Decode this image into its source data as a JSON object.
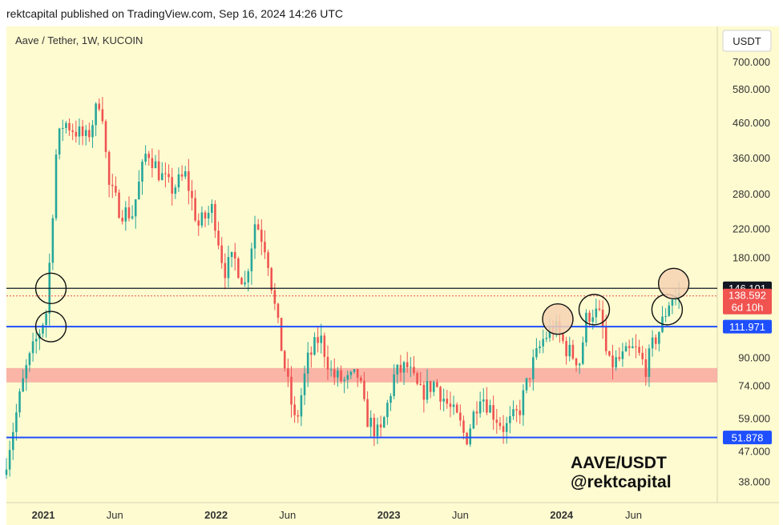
{
  "header": {
    "text": "rektcapital published on TradingView.com, Sep 16, 2024 14:26 UTC"
  },
  "chart_data": {
    "type": "candlestick",
    "symbol": "Aave / Tether, 1W, KUCOIN",
    "currency": "USDT",
    "y_scale": "log",
    "ylim": [
      33,
      900
    ],
    "y_ticks": [
      {
        "value": 700,
        "label": "700.000"
      },
      {
        "value": 580,
        "label": "580.000"
      },
      {
        "value": 460,
        "label": "460.000"
      },
      {
        "value": 360,
        "label": "360.000"
      },
      {
        "value": 280,
        "label": "280.000"
      },
      {
        "value": 220,
        "label": "220.000"
      },
      {
        "value": 180,
        "label": "180.000"
      },
      {
        "value": 90,
        "label": "90.000"
      },
      {
        "value": 74,
        "label": "74.000"
      },
      {
        "value": 59,
        "label": "59.000"
      },
      {
        "value": 47,
        "label": "47.000"
      },
      {
        "value": 38,
        "label": "38.000"
      }
    ],
    "x_ticks": [
      {
        "t": "2021-01-01",
        "label": "2021",
        "year": true
      },
      {
        "t": "2021-06-01",
        "label": "Jun",
        "year": false
      },
      {
        "t": "2022-01-01",
        "label": "2022",
        "year": true
      },
      {
        "t": "2022-06-01",
        "label": "Jun",
        "year": false
      },
      {
        "t": "2023-01-01",
        "label": "2023",
        "year": true
      },
      {
        "t": "2023-06-01",
        "label": "Jun",
        "year": false
      },
      {
        "t": "2024-01-01",
        "label": "2024",
        "year": true
      },
      {
        "t": "2024-06-01",
        "label": "Jun",
        "year": false
      }
    ],
    "price_levels": [
      {
        "name": "resistance",
        "value": 146.101,
        "label": "146.101",
        "color": "#131722"
      },
      {
        "name": "support-upper",
        "value": 111.971,
        "label": "111.971",
        "color": "#1e4fff"
      },
      {
        "name": "support-lower",
        "value": 51.878,
        "label": "51.878",
        "color": "#1e4fff"
      }
    ],
    "current_price": {
      "value": 138.592,
      "label": "138.592",
      "countdown": "6d 10h",
      "color": "#f05350"
    },
    "zone": {
      "low": 76,
      "high": 84,
      "color": "#f9a8a0"
    },
    "circles": [
      {
        "date": "2021-01-17",
        "value": 146,
        "fill": "none"
      },
      {
        "date": "2021-01-17",
        "value": 112,
        "fill": "none"
      },
      {
        "date": "2023-12-24",
        "value": 118,
        "fill": "#f6d2b4"
      },
      {
        "date": "2024-03-10",
        "value": 126,
        "fill": "none"
      },
      {
        "date": "2024-08-11",
        "value": 126,
        "fill": "none"
      },
      {
        "date": "2024-08-25",
        "value": 151,
        "fill": "#f6d2b4"
      }
    ],
    "anchors": [
      [
        "2020-10-15",
        40
      ],
      [
        "2020-12-01",
        82
      ],
      [
        "2021-01-15",
        125
      ],
      [
        "2021-02-05",
        390
      ],
      [
        "2021-02-20",
        465
      ],
      [
        "2021-04-10",
        410
      ],
      [
        "2021-05-10",
        560
      ],
      [
        "2021-05-25",
        300
      ],
      [
        "2021-06-20",
        250
      ],
      [
        "2021-07-15",
        245
      ],
      [
        "2021-08-15",
        385
      ],
      [
        "2021-09-10",
        325
      ],
      [
        "2021-10-05",
        290
      ],
      [
        "2021-11-05",
        320
      ],
      [
        "2021-12-01",
        225
      ],
      [
        "2022-01-01",
        255
      ],
      [
        "2022-01-25",
        165
      ],
      [
        "2022-02-15",
        180
      ],
      [
        "2022-03-10",
        150
      ],
      [
        "2022-04-01",
        235
      ],
      [
        "2022-04-25",
        190
      ],
      [
        "2022-05-15",
        120
      ],
      [
        "2022-06-05",
        80
      ],
      [
        "2022-06-25",
        56
      ],
      [
        "2022-07-20",
        88
      ],
      [
        "2022-08-15",
        105
      ],
      [
        "2022-09-10",
        80
      ],
      [
        "2022-10-10",
        76
      ],
      [
        "2022-11-05",
        80
      ],
      [
        "2022-11-20",
        60
      ],
      [
        "2022-12-20",
        52
      ],
      [
        "2023-01-20",
        80
      ],
      [
        "2023-02-15",
        85
      ],
      [
        "2023-03-15",
        70
      ],
      [
        "2023-04-15",
        76
      ],
      [
        "2023-05-15",
        64
      ],
      [
        "2023-06-05",
        58
      ],
      [
        "2023-06-20",
        51
      ],
      [
        "2023-07-20",
        71
      ],
      [
        "2023-08-15",
        62
      ],
      [
        "2023-09-10",
        55
      ],
      [
        "2023-10-10",
        62
      ],
      [
        "2023-11-05",
        84
      ],
      [
        "2023-12-01",
        103
      ],
      [
        "2023-12-24",
        112
      ],
      [
        "2024-01-20",
        95
      ],
      [
        "2024-02-15",
        88
      ],
      [
        "2024-03-01",
        120
      ],
      [
        "2024-03-15",
        125
      ],
      [
        "2024-04-01",
        118
      ],
      [
        "2024-04-15",
        85
      ],
      [
        "2024-05-15",
        90
      ],
      [
        "2024-06-10",
        96
      ],
      [
        "2024-07-05",
        84
      ],
      [
        "2024-07-20",
        100
      ],
      [
        "2024-08-05",
        112
      ],
      [
        "2024-08-25",
        137
      ],
      [
        "2024-09-10",
        139
      ]
    ]
  },
  "annotation": {
    "line1": "AAVE/USDT",
    "line2": "@rektcapital"
  }
}
